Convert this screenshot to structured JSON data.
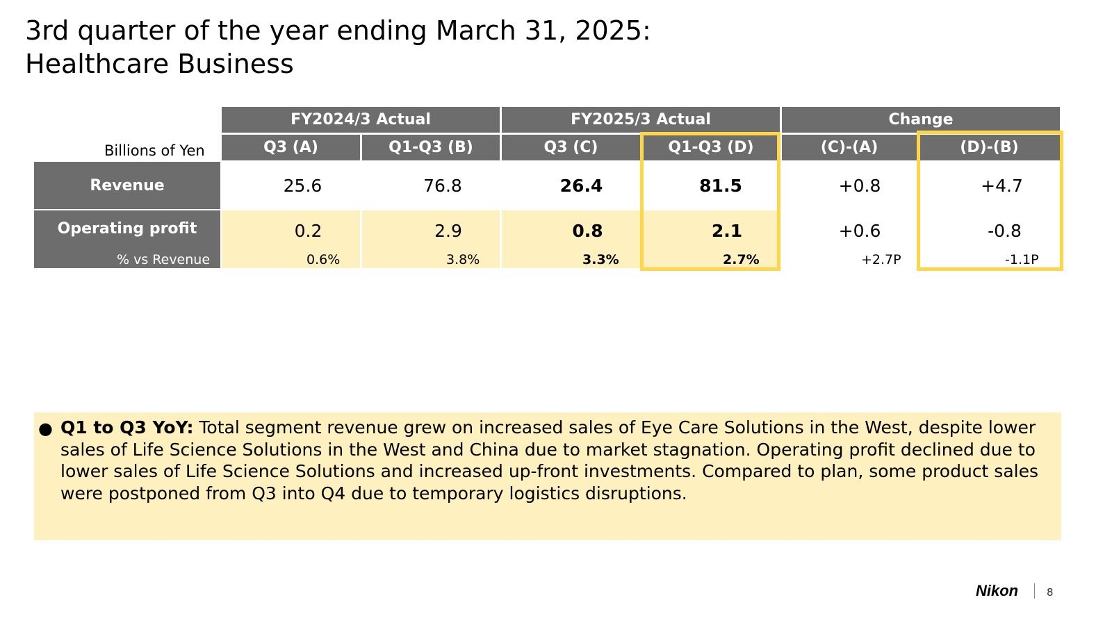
{
  "slide": {
    "title_line1": "3rd quarter of the year ending March 31, 2025:",
    "title_line2": "Healthcare Business",
    "page_number": "8",
    "logo_text": "Nikon"
  },
  "table": {
    "units": "Billions of Yen",
    "groups": [
      "FY2024/3 Actual",
      "FY2025/3 Actual",
      "Change"
    ],
    "columns": [
      "Q3 (A)",
      "Q1-Q3 (B)",
      "Q3 (C)",
      "Q1-Q3 (D)",
      "(C)-(A)",
      "(D)-(B)"
    ],
    "rows": {
      "revenue": {
        "label": "Revenue",
        "values": [
          "25.6",
          "76.8",
          "26.4",
          "81.5",
          "+0.8",
          "+4.7"
        ]
      },
      "operating_profit": {
        "label": "Operating profit",
        "values": [
          "0.2",
          "2.9",
          "0.8",
          "2.1",
          "+0.6",
          "-0.8"
        ]
      },
      "pct_vs_revenue": {
        "label": "% vs Revenue",
        "values": [
          "0.6%",
          "3.8%",
          "3.3%",
          "2.7%",
          "+2.7P",
          "-1.1P"
        ]
      }
    },
    "highlight_color": "#ffd54a",
    "header_color": "#6d6d6d",
    "cream_color": "#fff0bf"
  },
  "note": {
    "heading": "Q1 to Q3 YoY:",
    "text": " Total segment revenue grew on increased sales of Eye Care Solutions in the West, despite lower sales of Life Science Solutions in the West and China due to market stagnation. Operating profit declined due to lower sales of Life Science Solutions and increased up-front investments. Compared to plan, some product sales were postponed from Q3 into Q4 due to temporary logistics disruptions."
  }
}
